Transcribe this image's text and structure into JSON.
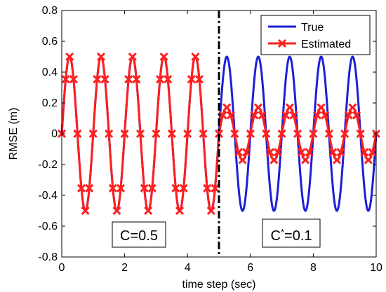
{
  "chart_data": {
    "type": "line",
    "title": "",
    "xlabel": "time step (sec)",
    "ylabel": "RMSE (m)",
    "xlim": [
      0,
      10
    ],
    "ylim": [
      -0.8,
      0.8
    ],
    "x_ticks": [
      "0",
      "2",
      "4",
      "6",
      "8",
      "10"
    ],
    "y_ticks": [
      "-0.8",
      "-0.6",
      "-0.4",
      "-0.2",
      "0",
      "0.2",
      "0.4",
      "0.6",
      "0.8"
    ],
    "grid": false,
    "legend_position": "top-right",
    "series": [
      {
        "name": "True",
        "color": "#1f1fd6",
        "marker": "none",
        "function": "0.5*sin(2*pi*t)",
        "x_range": [
          0,
          10
        ]
      },
      {
        "name": "Estimated",
        "color": "#ff1f1f",
        "marker": "x",
        "segments": [
          {
            "x_range": [
              0,
              5
            ],
            "amplitude": 0.5,
            "frequency_hz": 1
          },
          {
            "x_range": [
              5,
              10
            ],
            "amplitude": 0.17,
            "frequency_hz": 1
          }
        ],
        "marker_spacing": 0.125
      }
    ],
    "vertical_line": {
      "x": 5,
      "style": "dash-dot",
      "color": "#000000"
    },
    "annotations": [
      {
        "text": "C=0.5",
        "x": 2.5,
        "y": -0.68
      },
      {
        "text": "C",
        "superscript": "*",
        "suffix": "=0.1",
        "x": 7.5,
        "y": -0.68
      }
    ]
  }
}
